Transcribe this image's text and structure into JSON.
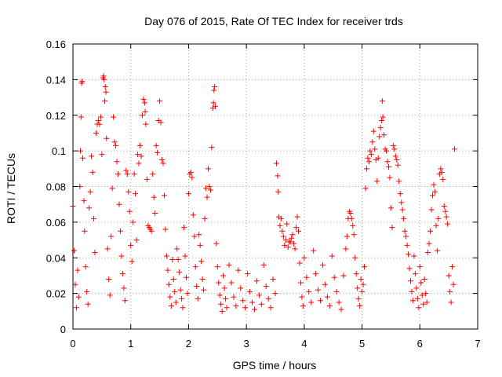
{
  "chart_data": {
    "type": "scatter",
    "title": "Day 076 of 2015, Rate Of TEC Index for receiver trds",
    "xlabel": "GPS time / hours",
    "ylabel": "ROTI / TECUs",
    "xlim": [
      0,
      7
    ],
    "ylim": [
      0,
      0.16
    ],
    "x_ticks": [
      0,
      1,
      2,
      3,
      4,
      5,
      6,
      7
    ],
    "y_ticks": [
      0,
      0.02,
      0.04,
      0.06,
      0.08,
      0.1,
      0.12,
      0.14,
      0.16
    ],
    "x_tick_labels": [
      "0",
      "1",
      "2",
      "3",
      "4",
      "5",
      "6",
      "7"
    ],
    "y_tick_labels": [
      "0",
      "0.02",
      "0.04",
      "0.06",
      "0.08",
      "0.1",
      "0.12",
      "0.14",
      "0.16"
    ],
    "grid": true,
    "marker": "+",
    "color": "#ff0000",
    "series": [
      {
        "name": "ROTI",
        "points": [
          [
            0.0,
            0.069
          ],
          [
            0.02,
            0.044
          ],
          [
            0.04,
            0.025
          ],
          [
            0.06,
            0.012
          ],
          [
            0.08,
            0.033
          ],
          [
            0.1,
            0.018
          ],
          [
            0.12,
            0.08
          ],
          [
            0.13,
            0.1
          ],
          [
            0.14,
            0.119
          ],
          [
            0.15,
            0.138
          ],
          [
            0.16,
            0.139
          ],
          [
            0.17,
            0.096
          ],
          [
            0.19,
            0.072
          ],
          [
            0.2,
            0.055
          ],
          [
            0.22,
            0.035
          ],
          [
            0.24,
            0.021
          ],
          [
            0.26,
            0.014
          ],
          [
            0.28,
            0.068
          ],
          [
            0.3,
            0.077
          ],
          [
            0.32,
            0.097
          ],
          [
            0.34,
            0.088
          ],
          [
            0.36,
            0.062
          ],
          [
            0.38,
            0.043
          ],
          [
            0.4,
            0.11
          ],
          [
            0.42,
            0.115
          ],
          [
            0.44,
            0.117
          ],
          [
            0.46,
            0.115
          ],
          [
            0.48,
            0.119
          ],
          [
            0.5,
            0.098
          ],
          [
            0.52,
            0.141
          ],
          [
            0.53,
            0.142
          ],
          [
            0.54,
            0.14
          ],
          [
            0.55,
            0.128
          ],
          [
            0.56,
            0.136
          ],
          [
            0.57,
            0.133
          ],
          [
            0.58,
            0.107
          ],
          [
            0.6,
            0.045
          ],
          [
            0.62,
            0.028
          ],
          [
            0.64,
            0.019
          ],
          [
            0.66,
            0.052
          ],
          [
            0.68,
            0.079
          ],
          [
            0.7,
            0.119
          ],
          [
            0.72,
            0.105
          ],
          [
            0.74,
            0.103
          ],
          [
            0.76,
            0.094
          ],
          [
            0.78,
            0.087
          ],
          [
            0.8,
            0.07
          ],
          [
            0.82,
            0.055
          ],
          [
            0.84,
            0.041
          ],
          [
            0.86,
            0.031
          ],
          [
            0.88,
            0.023
          ],
          [
            0.9,
            0.016
          ],
          [
            0.92,
            0.089
          ],
          [
            0.94,
            0.087
          ],
          [
            0.96,
            0.077
          ],
          [
            0.98,
            0.066
          ],
          [
            1.0,
            0.047
          ],
          [
            1.02,
            0.038
          ],
          [
            1.04,
            0.06
          ],
          [
            1.06,
            0.087
          ],
          [
            1.08,
            0.076
          ],
          [
            1.1,
            0.05
          ],
          [
            1.12,
            0.098
          ],
          [
            1.14,
            0.093
          ],
          [
            1.16,
            0.103
          ],
          [
            1.18,
            0.097
          ],
          [
            1.2,
            0.12
          ],
          [
            1.22,
            0.129
          ],
          [
            1.24,
            0.127
          ],
          [
            1.25,
            0.122
          ],
          [
            1.26,
            0.115
          ],
          [
            1.28,
            0.084
          ],
          [
            1.3,
            0.058
          ],
          [
            1.32,
            0.057
          ],
          [
            1.34,
            0.056
          ],
          [
            1.36,
            0.055
          ],
          [
            1.38,
            0.087
          ],
          [
            1.4,
            0.074
          ],
          [
            1.42,
            0.065
          ],
          [
            1.44,
            0.103
          ],
          [
            1.46,
            0.099
          ],
          [
            1.48,
            0.117
          ],
          [
            1.5,
            0.128
          ],
          [
            1.52,
            0.116
          ],
          [
            1.54,
            0.095
          ],
          [
            1.56,
            0.093
          ],
          [
            1.58,
            0.075
          ],
          [
            1.6,
            0.056
          ],
          [
            1.62,
            0.041
          ],
          [
            1.64,
            0.033
          ],
          [
            1.66,
            0.025
          ],
          [
            1.68,
            0.018
          ],
          [
            1.7,
            0.013
          ],
          [
            1.72,
            0.039
          ],
          [
            1.74,
            0.028
          ],
          [
            1.76,
            0.021
          ],
          [
            1.78,
            0.015
          ],
          [
            1.8,
            0.045
          ],
          [
            1.82,
            0.039
          ],
          [
            1.84,
            0.032
          ],
          [
            1.86,
            0.022
          ],
          [
            1.88,
            0.017
          ],
          [
            1.9,
            0.012
          ],
          [
            1.92,
            0.057
          ],
          [
            1.94,
            0.041
          ],
          [
            1.96,
            0.029
          ],
          [
            1.98,
            0.02
          ],
          [
            2.0,
            0.076
          ],
          [
            2.02,
            0.087
          ],
          [
            2.04,
            0.088
          ],
          [
            2.06,
            0.085
          ],
          [
            2.08,
            0.064
          ],
          [
            2.1,
            0.052
          ],
          [
            2.12,
            0.035
          ],
          [
            2.14,
            0.024
          ],
          [
            2.16,
            0.017
          ],
          [
            2.18,
            0.053
          ],
          [
            2.2,
            0.047
          ],
          [
            2.22,
            0.038
          ],
          [
            2.24,
            0.028
          ],
          [
            2.26,
            0.022
          ],
          [
            2.28,
            0.062
          ],
          [
            2.3,
            0.079
          ],
          [
            2.32,
            0.074
          ],
          [
            2.34,
            0.09
          ],
          [
            2.36,
            0.08
          ],
          [
            2.38,
            0.078
          ],
          [
            2.4,
            0.102
          ],
          [
            2.42,
            0.124
          ],
          [
            2.43,
            0.127
          ],
          [
            2.44,
            0.134
          ],
          [
            2.45,
            0.136
          ],
          [
            2.46,
            0.125
          ],
          [
            2.48,
            0.048
          ],
          [
            2.5,
            0.035
          ],
          [
            2.52,
            0.026
          ],
          [
            2.54,
            0.019
          ],
          [
            2.56,
            0.014
          ],
          [
            2.58,
            0.01
          ],
          [
            2.6,
            0.03
          ],
          [
            2.62,
            0.023
          ],
          [
            2.64,
            0.017
          ],
          [
            2.66,
            0.012
          ],
          [
            2.7,
            0.036
          ],
          [
            2.74,
            0.026
          ],
          [
            2.78,
            0.018
          ],
          [
            2.82,
            0.013
          ],
          [
            2.86,
            0.033
          ],
          [
            2.9,
            0.023
          ],
          [
            2.94,
            0.016
          ],
          [
            2.98,
            0.012
          ],
          [
            3.02,
            0.031
          ],
          [
            3.06,
            0.021
          ],
          [
            3.1,
            0.015
          ],
          [
            3.14,
            0.011
          ],
          [
            3.18,
            0.027
          ],
          [
            3.22,
            0.019
          ],
          [
            3.26,
            0.014
          ],
          [
            3.3,
            0.036
          ],
          [
            3.34,
            0.024
          ],
          [
            3.38,
            0.017
          ],
          [
            3.42,
            0.012
          ],
          [
            3.46,
            0.028
          ],
          [
            3.5,
            0.02
          ],
          [
            3.52,
            0.093
          ],
          [
            3.54,
            0.086
          ],
          [
            3.55,
            0.077
          ],
          [
            3.56,
            0.063
          ],
          [
            3.58,
            0.058
          ],
          [
            3.6,
            0.062
          ],
          [
            3.62,
            0.055
          ],
          [
            3.64,
            0.052
          ],
          [
            3.66,
            0.047
          ],
          [
            3.68,
            0.05
          ],
          [
            3.7,
            0.059
          ],
          [
            3.72,
            0.046
          ],
          [
            3.74,
            0.049
          ],
          [
            3.76,
            0.049
          ],
          [
            3.78,
            0.051
          ],
          [
            3.8,
            0.053
          ],
          [
            3.82,
            0.048
          ],
          [
            3.84,
            0.045
          ],
          [
            3.86,
            0.057
          ],
          [
            3.88,
            0.063
          ],
          [
            3.9,
            0.055
          ],
          [
            3.92,
            0.037
          ],
          [
            3.94,
            0.026
          ],
          [
            3.96,
            0.018
          ],
          [
            3.98,
            0.013
          ],
          [
            4.0,
            0.04
          ],
          [
            4.04,
            0.029
          ],
          [
            4.08,
            0.021
          ],
          [
            4.12,
            0.015
          ],
          [
            4.16,
            0.044
          ],
          [
            4.2,
            0.031
          ],
          [
            4.24,
            0.022
          ],
          [
            4.28,
            0.016
          ],
          [
            4.32,
            0.036
          ],
          [
            4.36,
            0.025
          ],
          [
            4.4,
            0.018
          ],
          [
            4.44,
            0.013
          ],
          [
            4.48,
            0.041
          ],
          [
            4.52,
            0.029
          ],
          [
            4.56,
            0.021
          ],
          [
            4.6,
            0.015
          ],
          [
            4.64,
            0.011
          ],
          [
            4.68,
            0.03
          ],
          [
            4.72,
            0.045
          ],
          [
            4.74,
            0.052
          ],
          [
            4.76,
            0.062
          ],
          [
            4.78,
            0.066
          ],
          [
            4.8,
            0.065
          ],
          [
            4.82,
            0.062
          ],
          [
            4.84,
            0.058
          ],
          [
            4.86,
            0.053
          ],
          [
            4.88,
            0.04
          ],
          [
            4.9,
            0.031
          ],
          [
            4.92,
            0.023
          ],
          [
            4.94,
            0.017
          ],
          [
            4.96,
            0.013
          ],
          [
            4.98,
            0.028
          ],
          [
            5.0,
            0.021
          ],
          [
            5.02,
            0.025
          ],
          [
            5.04,
            0.035
          ],
          [
            5.06,
            0.079
          ],
          [
            5.08,
            0.09
          ],
          [
            5.1,
            0.096
          ],
          [
            5.12,
            0.094
          ],
          [
            5.14,
            0.1
          ],
          [
            5.16,
            0.098
          ],
          [
            5.18,
            0.105
          ],
          [
            5.2,
            0.111
          ],
          [
            5.22,
            0.101
          ],
          [
            5.24,
            0.095
          ],
          [
            5.26,
            0.083
          ],
          [
            5.28,
            0.096
          ],
          [
            5.3,
            0.108
          ],
          [
            5.32,
            0.113
          ],
          [
            5.34,
            0.117
          ],
          [
            5.35,
            0.128
          ],
          [
            5.36,
            0.119
          ],
          [
            5.38,
            0.109
          ],
          [
            5.4,
            0.101
          ],
          [
            5.42,
            0.1
          ],
          [
            5.44,
            0.094
          ],
          [
            5.46,
            0.091
          ],
          [
            5.48,
            0.085
          ],
          [
            5.5,
            0.068
          ],
          [
            5.52,
            0.057
          ],
          [
            5.54,
            0.103
          ],
          [
            5.56,
            0.101
          ],
          [
            5.58,
            0.097
          ],
          [
            5.6,
            0.095
          ],
          [
            5.62,
            0.092
          ],
          [
            5.64,
            0.083
          ],
          [
            5.66,
            0.076
          ],
          [
            5.68,
            0.071
          ],
          [
            5.7,
            0.067
          ],
          [
            5.72,
            0.062
          ],
          [
            5.74,
            0.055
          ],
          [
            5.76,
            0.052
          ],
          [
            5.78,
            0.047
          ],
          [
            5.8,
            0.042
          ],
          [
            5.82,
            0.034
          ],
          [
            5.84,
            0.027
          ],
          [
            5.86,
            0.021
          ],
          [
            5.88,
            0.016
          ],
          [
            5.9,
            0.041
          ],
          [
            5.92,
            0.031
          ],
          [
            5.94,
            0.023
          ],
          [
            5.96,
            0.017
          ],
          [
            5.98,
            0.012
          ],
          [
            6.0,
            0.035
          ],
          [
            6.02,
            0.026
          ],
          [
            6.04,
            0.019
          ],
          [
            6.06,
            0.014
          ],
          [
            6.08,
            0.028
          ],
          [
            6.1,
            0.02
          ],
          [
            6.12,
            0.015
          ],
          [
            6.14,
            0.043
          ],
          [
            6.16,
            0.048
          ],
          [
            6.18,
            0.055
          ],
          [
            6.2,
            0.067
          ],
          [
            6.22,
            0.075
          ],
          [
            6.24,
            0.081
          ],
          [
            6.26,
            0.077
          ],
          [
            6.28,
            0.058
          ],
          [
            6.3,
            0.044
          ],
          [
            6.32,
            0.062
          ],
          [
            6.34,
            0.087
          ],
          [
            6.36,
            0.09
          ],
          [
            6.38,
            0.088
          ],
          [
            6.4,
            0.084
          ],
          [
            6.42,
            0.069
          ],
          [
            6.44,
            0.066
          ],
          [
            6.46,
            0.063
          ],
          [
            6.48,
            0.059
          ],
          [
            6.5,
            0.03
          ],
          [
            6.52,
            0.021
          ],
          [
            6.54,
            0.015
          ],
          [
            6.56,
            0.035
          ],
          [
            6.58,
            0.025
          ],
          [
            6.6,
            0.101
          ]
        ]
      }
    ]
  }
}
